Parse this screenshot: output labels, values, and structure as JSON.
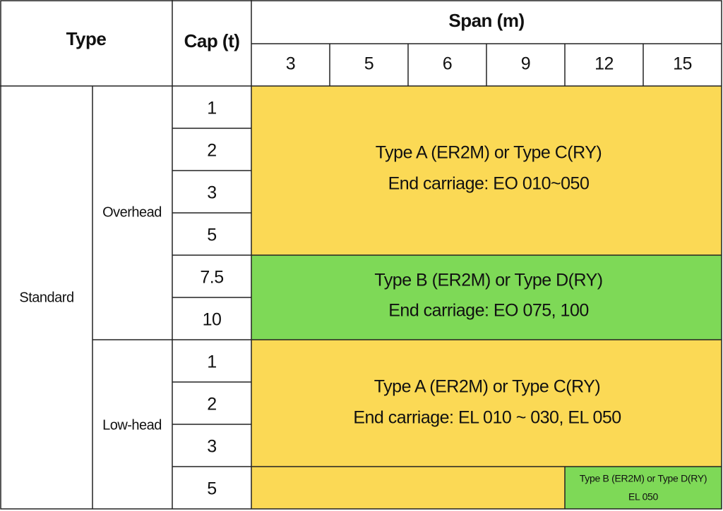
{
  "header": {
    "type": "Type",
    "cap": "Cap (t)",
    "span": "Span (m)",
    "spans": [
      "3",
      "5",
      "6",
      "9",
      "12",
      "15"
    ]
  },
  "groups": [
    {
      "label": "Standard",
      "subgroups": [
        {
          "label": "Overhead",
          "caps": [
            "1",
            "2",
            "3",
            "5",
            "7.5",
            "10"
          ]
        },
        {
          "label": "Low-head",
          "caps": [
            "1",
            "2",
            "3",
            "5"
          ]
        }
      ]
    }
  ],
  "blocks": [
    {
      "lines": [
        "Type A (ER2M) or Type C(RY)",
        "End carriage: EO 010~050"
      ]
    },
    {
      "lines": [
        "Type B (ER2M) or Type D(RY)",
        "End carriage: EO 075, 100"
      ]
    },
    {
      "lines": [
        "Type A (ER2M) or Type C(RY)",
        "End carriage: EL 010 ~ 030, EL 050"
      ]
    },
    {
      "lines": [
        "Type B (ER2M) or Type D(RY)",
        "EL 050"
      ]
    }
  ]
}
